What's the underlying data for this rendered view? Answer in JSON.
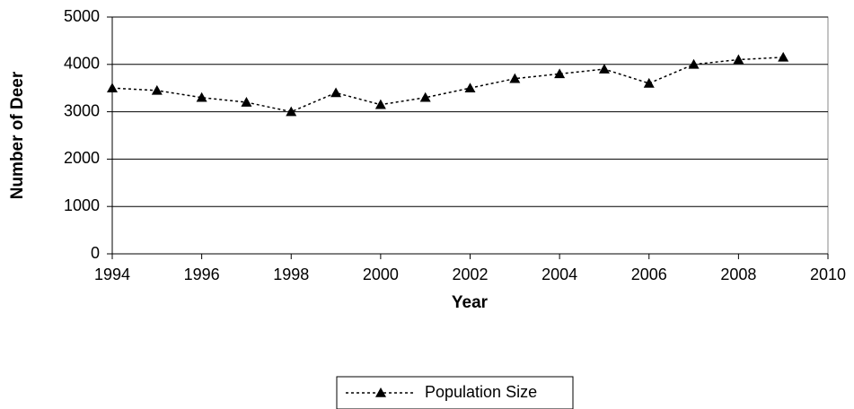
{
  "chart_data": {
    "type": "line",
    "x_label": "Year",
    "y_label": "Number of Deer",
    "x": [
      1994,
      1995,
      1996,
      1997,
      1998,
      1999,
      2000,
      2001,
      2002,
      2003,
      2004,
      2005,
      2006,
      2007,
      2008,
      2009
    ],
    "series": [
      {
        "name": "Population Size",
        "color": "#000000",
        "values": [
          3500,
          3450,
          3300,
          3200,
          3000,
          3400,
          3150,
          3300,
          3500,
          3700,
          3800,
          3900,
          3600,
          4000,
          4100,
          4150
        ]
      }
    ],
    "xlim": [
      1994,
      2010
    ],
    "xticks": [
      1994,
      1996,
      1998,
      2000,
      2002,
      2004,
      2006,
      2008,
      2010
    ],
    "ylim": [
      0,
      5000
    ],
    "yticks": [
      0,
      1000,
      2000,
      3000,
      4000,
      5000
    ],
    "grid": true,
    "legend": "bottom"
  }
}
